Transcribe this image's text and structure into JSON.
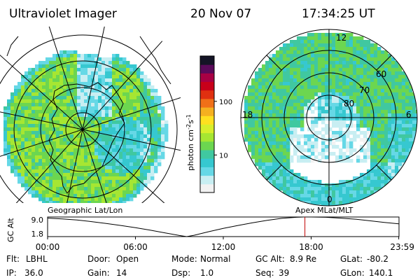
{
  "header": {
    "title": "Ultraviolet Imager",
    "date": "20 Nov 07",
    "time": "17:34:25 UT"
  },
  "colorbar": {
    "label": "photon cm",
    "label_sup1": "-2",
    "label_mid": "s",
    "label_sup2": "-1",
    "ticks": [
      {
        "value": 10,
        "label": "10"
      },
      {
        "value": 100,
        "label": "100"
      }
    ],
    "range": [
      2,
      700
    ],
    "colors": [
      "#f2f2f2",
      "#c8eef2",
      "#66d8e6",
      "#36c8d0",
      "#40c8a0",
      "#6cd650",
      "#a6e632",
      "#d8ee2c",
      "#ffe020",
      "#f5b020",
      "#f07018",
      "#e03010",
      "#c8001a",
      "#a80044",
      "#5a0a5a",
      "#141426"
    ]
  },
  "left_map": {
    "label": "Geographic Lat/Lon"
  },
  "right_map": {
    "label": "Apex  MLat/MLT",
    "mlt_labels": [
      "12",
      "18",
      "6",
      "0"
    ],
    "lat_labels": [
      "60",
      "70",
      "80"
    ]
  },
  "chart_data": {
    "type": "line",
    "title": "",
    "ylabel": "GC Alt",
    "yticks": [
      "9.0",
      "1.8"
    ],
    "ylim": [
      1.8,
      9.0
    ],
    "xlim_hours": [
      0,
      24
    ],
    "xtick_labels": [
      "00:00",
      "06:00",
      "12:00",
      "18:00",
      "23:59"
    ],
    "xtick_hours": [
      0,
      6,
      12,
      18,
      23.983
    ],
    "x_hours": [
      0,
      1,
      2,
      3,
      4,
      5,
      6,
      7,
      8,
      9,
      9.5,
      10,
      11,
      12,
      13,
      14,
      15,
      16,
      17,
      17.5,
      18,
      19,
      20,
      21,
      22,
      23,
      23.983
    ],
    "values": [
      8.6,
      8.3,
      7.9,
      7.3,
      6.6,
      5.9,
      5.1,
      4.2,
      3.2,
      2.2,
      1.8,
      2.3,
      3.6,
      4.8,
      5.9,
      6.9,
      7.8,
      8.5,
      8.9,
      9.0,
      9.0,
      8.9,
      8.6,
      8.2,
      7.6,
      7.0,
      6.5
    ],
    "current_time_hours": 17.574,
    "current_marker_color": "#c00000"
  },
  "status": {
    "filter_label": "Flt:",
    "filter_value": "LBHL",
    "door_label": "Door:",
    "door_value": "Open",
    "mode_label": "Mode:",
    "mode_value": "Normal",
    "gcalt_label": "GC Alt:",
    "gcalt_value": "8.9 Re",
    "glat_label": "GLat:",
    "glat_value": "-80.2",
    "ip_label": "IP:",
    "ip_value": "36.0",
    "gain_label": "Gain:",
    "gain_value": "14",
    "dsp_label": "Dsp:",
    "dsp_value": "1.0",
    "seq_label": "Seq:",
    "seq_value": "39",
    "glon_label": "GLon:",
    "glon_value": "140.1"
  }
}
